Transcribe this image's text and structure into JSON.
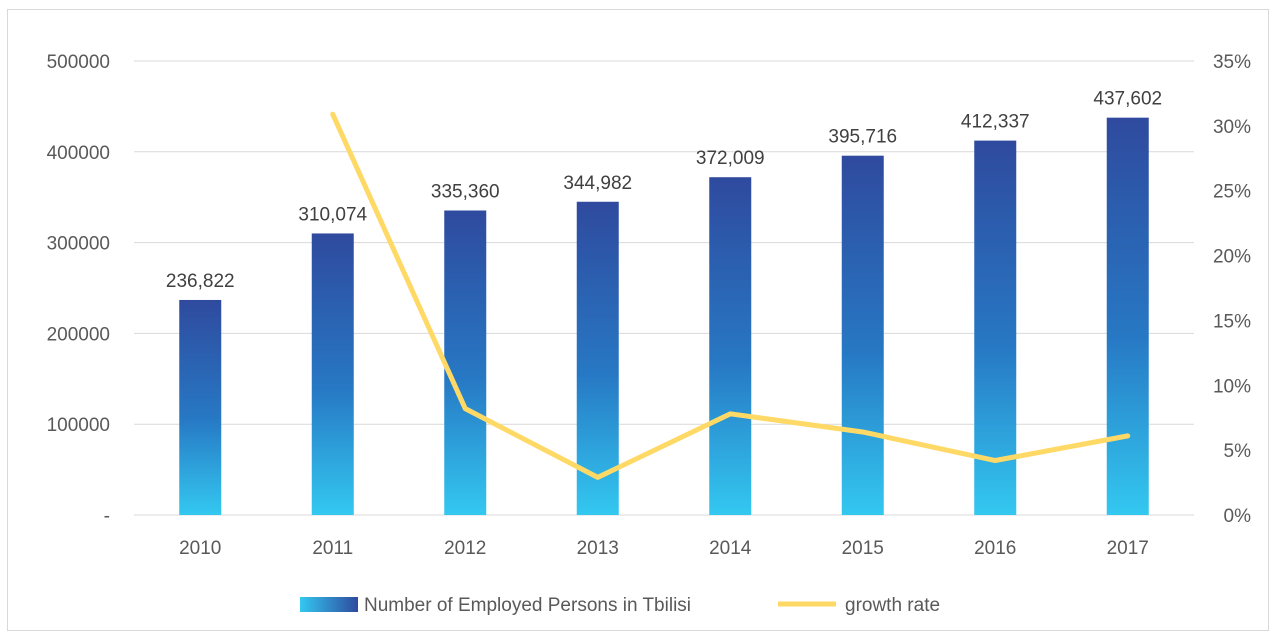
{
  "chart_data": {
    "type": "bar",
    "categories": [
      "2010",
      "2011",
      "2012",
      "2013",
      "2014",
      "2015",
      "2016",
      "2017"
    ],
    "series": [
      {
        "name": "Number of Employed Persons in Tbilisi",
        "type": "bar",
        "axis": "left",
        "values": [
          236822,
          310074,
          335360,
          344982,
          372009,
          395716,
          412337,
          437602
        ],
        "data_labels": [
          "236,822",
          "310,074",
          "335,360",
          "344,982",
          "372,009",
          "395,716",
          "412,337",
          "437,602"
        ],
        "color_top": "#2F4A9E",
        "color_bottom": "#33C8F0"
      },
      {
        "name": "growth rate",
        "type": "line",
        "axis": "right",
        "values": [
          null,
          0.309,
          0.082,
          0.029,
          0.078,
          0.064,
          0.042,
          0.061
        ],
        "color": "#FFD966"
      }
    ],
    "y_left": {
      "ylim": [
        0,
        500000
      ],
      "ticks": [
        "-",
        "100000",
        "200000",
        "300000",
        "400000",
        "500000"
      ]
    },
    "y_right": {
      "ylim": [
        0,
        0.35
      ],
      "ticks": [
        "0%",
        "5%",
        "10%",
        "15%",
        "20%",
        "25%",
        "30%",
        "35%"
      ]
    },
    "grid": true,
    "legend": "bottom",
    "title": "",
    "xlabel": "",
    "ylabel": ""
  }
}
